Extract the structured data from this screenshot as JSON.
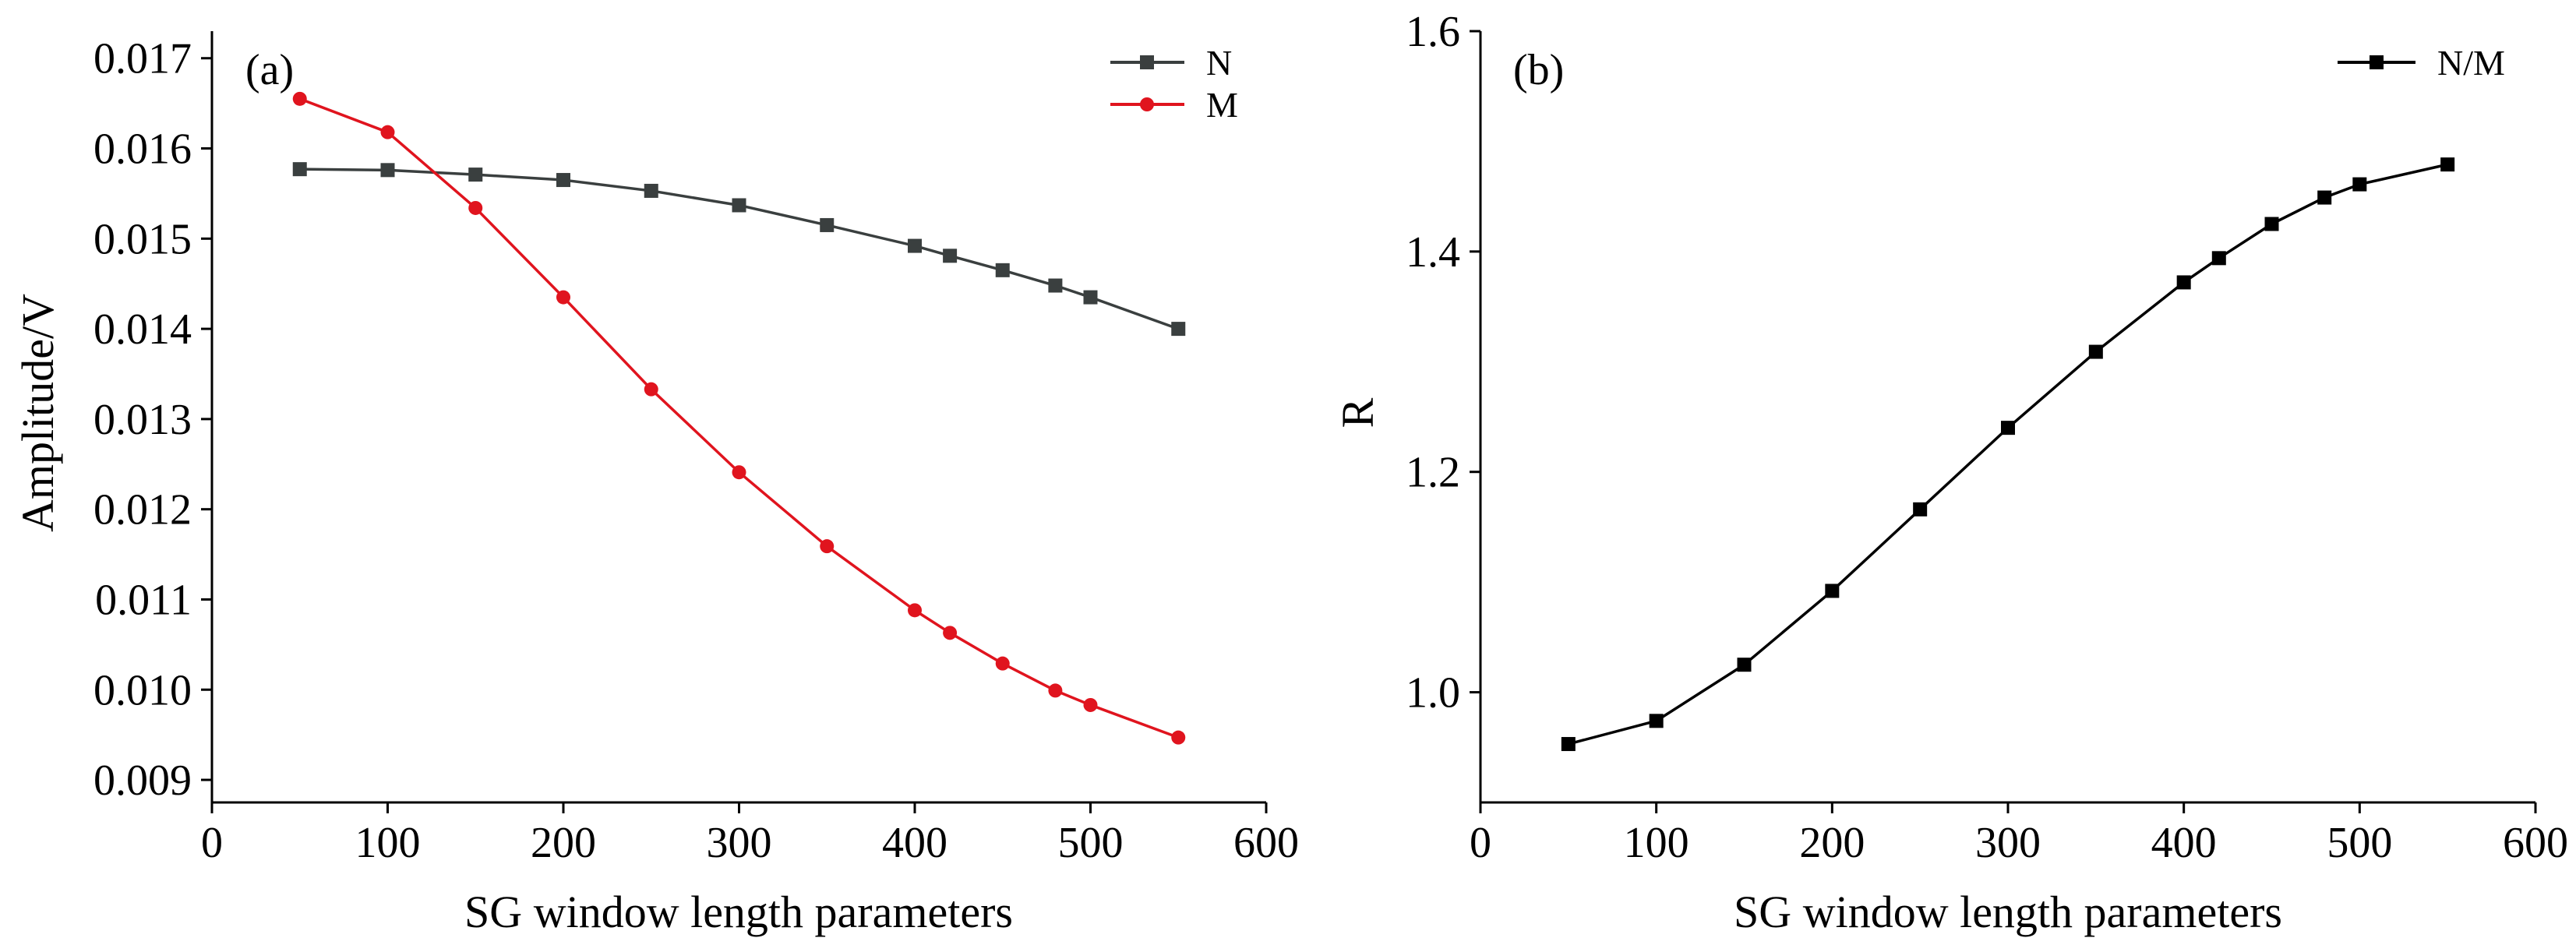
{
  "chart_data": [
    {
      "type": "line",
      "panel_label": "(a)",
      "xlabel": "SG window length parameters",
      "ylabel": "Amplitude/V",
      "xlim": [
        0,
        600
      ],
      "ylim": [
        0.00875,
        0.0173
      ],
      "xticks": [
        0,
        100,
        200,
        300,
        400,
        500,
        600
      ],
      "xtick_labels": [
        "0",
        "100",
        "200",
        "300",
        "400",
        "500",
        "600"
      ],
      "yticks": [
        0.009,
        0.01,
        0.011,
        0.012,
        0.013,
        0.014,
        0.015,
        0.016,
        0.017
      ],
      "ytick_labels": [
        "0.009",
        "0.010",
        "0.011",
        "0.012",
        "0.013",
        "0.014",
        "0.015",
        "0.016",
        "0.017"
      ],
      "grid": false,
      "legend_position": "top-right",
      "x": [
        50,
        100,
        150,
        200,
        250,
        300,
        350,
        400,
        420,
        450,
        480,
        500,
        550
      ],
      "series": [
        {
          "name": "N",
          "color": "#3a3f3f",
          "marker": "square",
          "values": [
            0.01577,
            0.01576,
            0.01571,
            0.01565,
            0.01553,
            0.01537,
            0.01515,
            0.01492,
            0.01481,
            0.01465,
            0.01448,
            0.01435,
            0.014
          ]
        },
        {
          "name": "M",
          "color": "#e0141e",
          "marker": "circle",
          "values": [
            0.01655,
            0.01618,
            0.01534,
            0.01435,
            0.01333,
            0.01241,
            0.01159,
            0.01088,
            0.01063,
            0.01029,
            0.00999,
            0.00983,
            0.00947
          ]
        }
      ]
    },
    {
      "type": "line",
      "panel_label": "(b)",
      "xlabel": "SG window length parameters",
      "ylabel": "R",
      "xlim": [
        0,
        600
      ],
      "ylim": [
        0.9,
        1.6
      ],
      "xticks": [
        0,
        100,
        200,
        300,
        400,
        500,
        600
      ],
      "xtick_labels": [
        "0",
        "100",
        "200",
        "300",
        "400",
        "500",
        "600"
      ],
      "yticks": [
        1.0,
        1.2,
        1.4,
        1.6
      ],
      "ytick_labels": [
        "1.0",
        "1.2",
        "1.4",
        "1.6"
      ],
      "grid": false,
      "legend_position": "top-right",
      "x": [
        50,
        100,
        150,
        200,
        250,
        300,
        350,
        400,
        420,
        450,
        480,
        500,
        550
      ],
      "series": [
        {
          "name": "N/M",
          "color": "#000000",
          "marker": "square",
          "values": [
            0.953,
            0.974,
            1.025,
            1.092,
            1.166,
            1.24,
            1.309,
            1.372,
            1.394,
            1.425,
            1.449,
            1.461,
            1.479
          ]
        }
      ]
    }
  ]
}
